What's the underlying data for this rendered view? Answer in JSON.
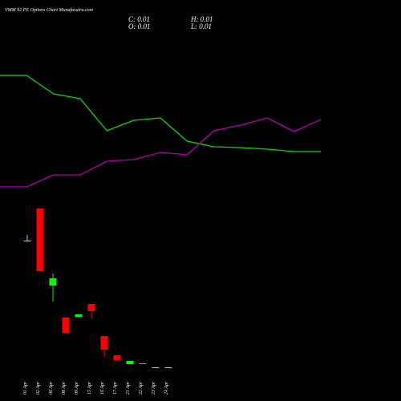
{
  "chart_data": [
    {
      "type": "line",
      "title": "VMM 92 PE Options Chart Munafasutra.com",
      "categories": [
        null,
        null,
        null,
        null,
        null,
        null,
        null,
        null,
        null,
        null,
        null,
        null,
        null
      ],
      "ylim": [
        0,
        3
      ],
      "series": [
        {
          "color": "#00dd00",
          "values": [
            2.06,
            2.06,
            1.83,
            1.77,
            1.37,
            1.5,
            1.53,
            1.24,
            1.17,
            1.16,
            1.14,
            1.11,
            1.11
          ]
        },
        {
          "color": "#b000b0",
          "values": [
            0.67,
            0.67,
            0.82,
            0.82,
            0.99,
            1.01,
            1.1,
            1.07,
            1.37,
            1.44,
            1.53,
            1.36,
            1.51
          ]
        }
      ]
    },
    {
      "type": "candlestick",
      "ohlc_labels": [
        "C: 0.01",
        "O: 0.01",
        "H: 0.01",
        "L: 0.01"
      ],
      "categories": [
        "01 Apr",
        "02 Apr",
        "06 Apr",
        "08 Apr",
        "09 Apr",
        "15 Apr",
        "16 Apr",
        "17 Apr",
        "21 Apr",
        "22 Apr",
        "23 Apr",
        "24 Apr"
      ],
      "ylim": [
        0,
        1.2
      ],
      "up_color": "#00ff00",
      "down_color": "#ff0000",
      "flat_color": "#cccccc",
      "open": [
        0.8,
        1.0,
        0.52,
        0.32,
        0.325,
        0.405,
        0.205,
        0.085,
        0.03,
        0.03,
        0.01,
        0.01
      ],
      "high": [
        0.835,
        1.0,
        0.595,
        0.32,
        0.34,
        0.405,
        0.205,
        0.085,
        0.05,
        0.035,
        0.01,
        0.01
      ],
      "low": [
        0.795,
        0.61,
        0.42,
        0.225,
        0.325,
        0.31,
        0.075,
        0.055,
        0.03,
        0.03,
        0.01,
        0.01
      ],
      "close": [
        0.8,
        0.61,
        0.565,
        0.225,
        0.34,
        0.36,
        0.12,
        0.055,
        0.05,
        0.035,
        0.01,
        0.01
      ]
    }
  ]
}
